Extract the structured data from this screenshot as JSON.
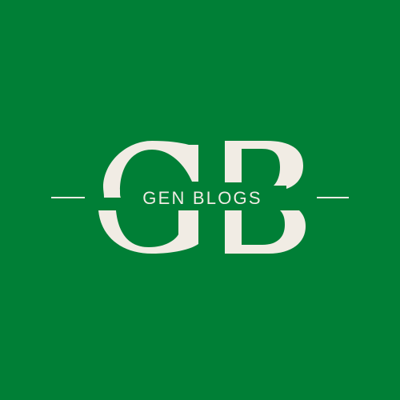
{
  "brand": {
    "monogram": "GB",
    "name": "GEN BLOGS"
  },
  "colors": {
    "background": "#007f36",
    "logo": "#f1ece4"
  },
  "icons": {
    "monogram": "gb-monogram-icon"
  }
}
